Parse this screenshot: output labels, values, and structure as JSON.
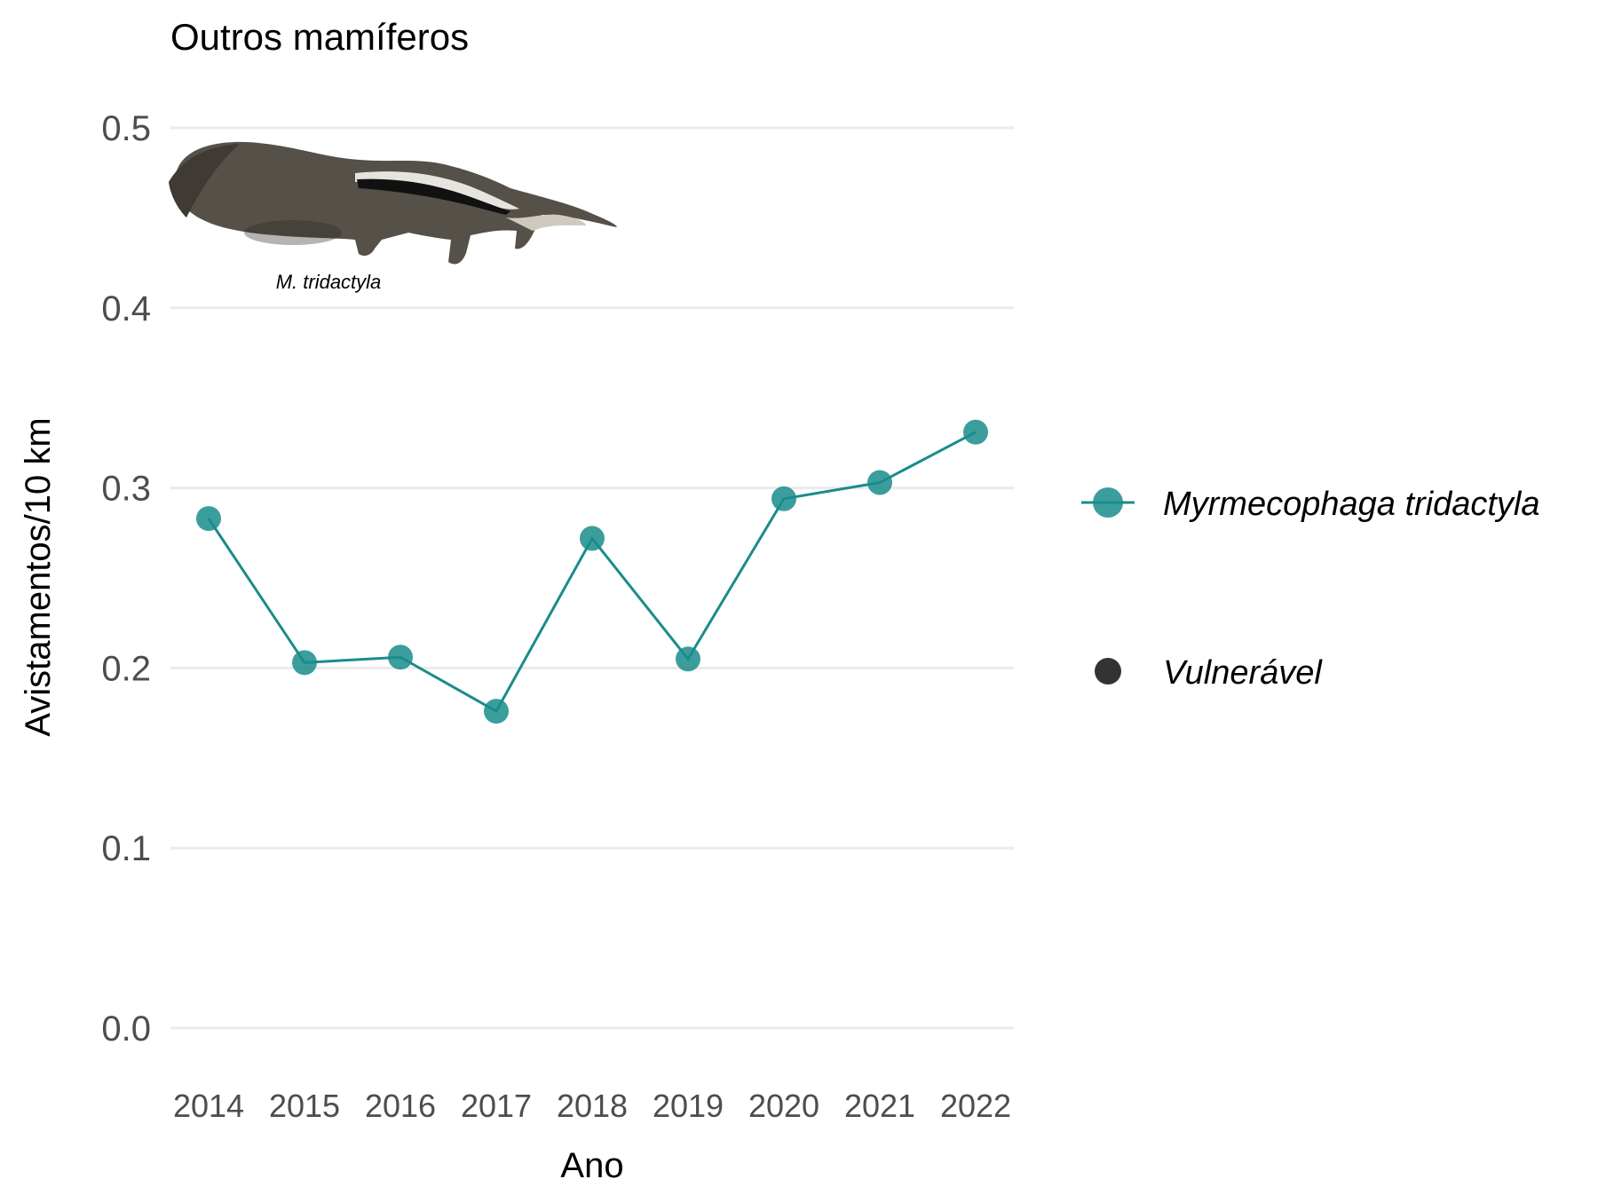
{
  "chart_data": {
    "type": "line",
    "title": "Outros mamíferos",
    "xlabel": "Ano",
    "ylabel": "Avistamentos/10 km",
    "categories": [
      "2014",
      "2015",
      "2016",
      "2017",
      "2018",
      "2019",
      "2020",
      "2021",
      "2022"
    ],
    "y_ticks": [
      "0.0",
      "0.1",
      "0.2",
      "0.3",
      "0.4",
      "0.5"
    ],
    "ylim": [
      0,
      0.5
    ],
    "grid": "horizontal",
    "legend_position": "right",
    "series": [
      {
        "name": "Myrmecophaga tridactyla",
        "color": "#1a8c8c",
        "values": [
          0.283,
          0.203,
          0.206,
          0.176,
          0.272,
          0.205,
          0.294,
          0.303,
          0.331
        ]
      }
    ],
    "legend": {
      "series_label": "Myrmecophaga tridactyla",
      "status_label": "Vulnerável",
      "status_color": "#333333"
    },
    "annotation": {
      "image": "giant-anteater-image",
      "caption": "M. tridactyla"
    }
  }
}
